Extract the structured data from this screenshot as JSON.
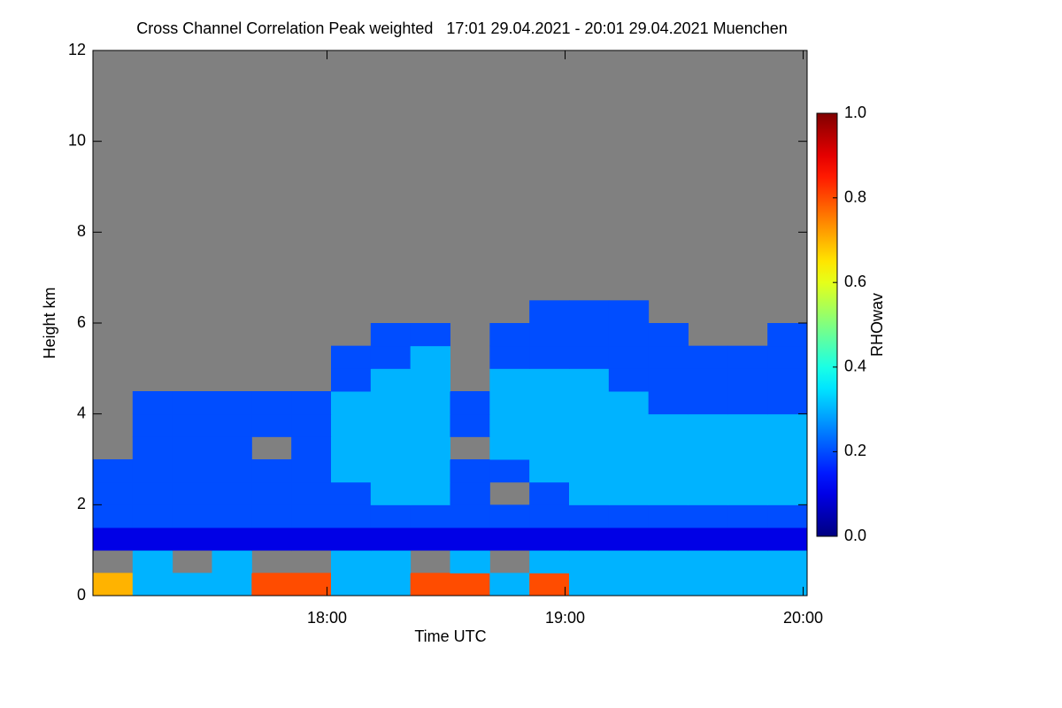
{
  "chart_data": {
    "type": "heatmap",
    "title": "Cross Channel Correlation Peak weighted   17:01 29.04.2021 - 20:01 29.04.2021 Muenchen",
    "xlabel": "Time UTC",
    "ylabel": "Height km",
    "xlim": [
      1,
      181
    ],
    "xticks": [
      {
        "value": 60,
        "label": "18:00"
      },
      {
        "value": 120,
        "label": "19:00"
      },
      {
        "value": 180,
        "label": "20:00"
      }
    ],
    "x_edges": [
      1,
      11,
      21,
      31,
      41,
      51,
      61,
      71,
      81,
      91,
      101,
      111,
      121,
      131,
      141,
      151,
      161,
      171,
      181
    ],
    "ylim": [
      0,
      12
    ],
    "yticks": [
      0,
      2,
      4,
      6,
      8,
      10,
      12
    ],
    "y_edges": [
      0,
      0.5,
      1,
      1.5,
      2,
      2.5,
      3,
      3.5,
      4,
      4.5,
      5,
      5.5,
      6,
      6.5
    ],
    "missing_color": "#808080",
    "z": [
      [
        0.7,
        0.3,
        0.3,
        0.3,
        0.8,
        0.8,
        0.3,
        0.3,
        0.8,
        0.8,
        0.3,
        0.8,
        0.3,
        0.3,
        0.3,
        0.3,
        0.3,
        0.3
      ],
      [
        null,
        0.3,
        null,
        0.3,
        null,
        null,
        0.3,
        0.3,
        null,
        0.3,
        null,
        0.3,
        0.3,
        0.3,
        0.3,
        0.3,
        0.3,
        0.3
      ],
      [
        0.1,
        0.1,
        0.1,
        0.1,
        0.1,
        0.1,
        0.1,
        0.1,
        0.1,
        0.1,
        0.1,
        0.1,
        0.1,
        0.1,
        0.1,
        0.1,
        0.1,
        0.1
      ],
      [
        0.2,
        0.2,
        0.2,
        0.2,
        0.2,
        0.2,
        0.2,
        0.2,
        0.2,
        0.2,
        0.2,
        0.2,
        0.2,
        0.2,
        0.2,
        0.2,
        0.2,
        0.2
      ],
      [
        0.2,
        0.2,
        0.2,
        0.2,
        0.2,
        0.2,
        0.2,
        0.3,
        0.3,
        0.2,
        null,
        0.2,
        0.3,
        0.3,
        0.3,
        0.3,
        0.3,
        0.3
      ],
      [
        0.2,
        0.2,
        0.2,
        0.2,
        0.2,
        0.2,
        0.3,
        0.3,
        0.3,
        0.2,
        0.2,
        0.3,
        0.3,
        0.3,
        0.3,
        0.3,
        0.3,
        0.3
      ],
      [
        null,
        0.2,
        0.2,
        0.2,
        null,
        0.2,
        0.3,
        0.3,
        0.3,
        null,
        0.3,
        0.3,
        0.3,
        0.3,
        0.3,
        0.3,
        0.3,
        0.3
      ],
      [
        null,
        0.2,
        0.2,
        0.2,
        0.2,
        0.2,
        0.3,
        0.3,
        0.3,
        0.2,
        0.3,
        0.3,
        0.3,
        0.3,
        0.3,
        0.3,
        0.3,
        0.3
      ],
      [
        null,
        0.2,
        0.2,
        0.2,
        0.2,
        0.2,
        0.3,
        0.3,
        0.3,
        0.2,
        0.3,
        0.3,
        0.3,
        0.3,
        0.2,
        0.2,
        0.2,
        0.2
      ],
      [
        null,
        null,
        null,
        null,
        null,
        null,
        0.2,
        0.3,
        0.3,
        null,
        0.3,
        0.3,
        0.3,
        0.2,
        0.2,
        0.2,
        0.2,
        0.2
      ],
      [
        null,
        null,
        null,
        null,
        null,
        null,
        0.2,
        0.2,
        0.3,
        null,
        0.2,
        0.2,
        0.2,
        0.2,
        0.2,
        0.2,
        0.2,
        0.2
      ],
      [
        null,
        null,
        null,
        null,
        null,
        null,
        null,
        0.2,
        0.2,
        null,
        0.2,
        0.2,
        0.2,
        0.2,
        0.2,
        null,
        null,
        0.2
      ],
      [
        null,
        null,
        null,
        null,
        null,
        null,
        null,
        null,
        null,
        null,
        null,
        0.2,
        0.2,
        0.2,
        null,
        null,
        null,
        null
      ]
    ],
    "colorbar": {
      "label": "RHOwav",
      "colormap": "jet",
      "clim": [
        0,
        1
      ],
      "ticks": [
        {
          "value": 0,
          "label": "0.0"
        },
        {
          "value": 0.2,
          "label": "0.2"
        },
        {
          "value": 0.4,
          "label": "0.4"
        },
        {
          "value": 0.6,
          "label": "0.6"
        },
        {
          "value": 0.8,
          "label": "0.8"
        },
        {
          "value": 1,
          "label": "1.0"
        }
      ]
    }
  }
}
